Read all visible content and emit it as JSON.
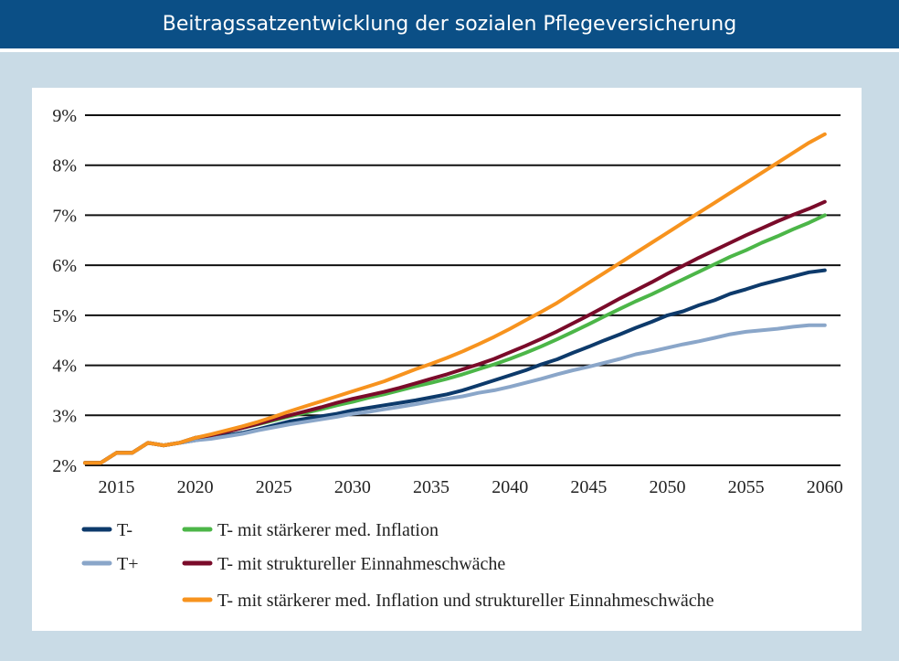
{
  "header": {
    "title": "Beitragssatzentwicklung der sozialen Pflegeversicherung"
  },
  "colors": {
    "header_bg": "#0b4f86",
    "frame_bg": "#c9dbe6",
    "T_minus": "#0d3a6b",
    "T_plus": "#8aa6c9",
    "inflation": "#4cb648",
    "structural": "#7a0b2a",
    "combined": "#f7931e"
  },
  "chart_data": {
    "type": "line",
    "title": "",
    "xlabel": "",
    "ylabel": "",
    "xlim": [
      2013,
      2061
    ],
    "ylim": [
      2,
      9
    ],
    "x_ticks": [
      2015,
      2020,
      2025,
      2030,
      2035,
      2040,
      2045,
      2050,
      2055,
      2060
    ],
    "y_ticks": [
      2,
      3,
      4,
      5,
      6,
      7,
      8,
      9
    ],
    "y_tick_labels": [
      "2%",
      "3%",
      "4%",
      "5%",
      "6%",
      "7%",
      "8%",
      "9%"
    ],
    "grid": "horizontal",
    "legend_position": "bottom",
    "x": [
      2013,
      2014,
      2015,
      2016,
      2017,
      2018,
      2019,
      2020,
      2021,
      2022,
      2023,
      2024,
      2025,
      2026,
      2027,
      2028,
      2029,
      2030,
      2031,
      2032,
      2033,
      2034,
      2035,
      2036,
      2037,
      2038,
      2039,
      2040,
      2041,
      2042,
      2043,
      2044,
      2045,
      2046,
      2047,
      2048,
      2049,
      2050,
      2051,
      2052,
      2053,
      2054,
      2055,
      2056,
      2057,
      2058,
      2059,
      2060
    ],
    "series": [
      {
        "name": "T-",
        "color_key": "T_minus",
        "values": [
          2.05,
          2.05,
          2.25,
          2.25,
          2.45,
          2.4,
          2.45,
          2.5,
          2.55,
          2.6,
          2.65,
          2.72,
          2.8,
          2.88,
          2.93,
          2.98,
          3.03,
          3.1,
          3.15,
          3.2,
          3.25,
          3.3,
          3.36,
          3.42,
          3.5,
          3.6,
          3.7,
          3.8,
          3.9,
          4.02,
          4.12,
          4.25,
          4.37,
          4.5,
          4.62,
          4.75,
          4.87,
          5.0,
          5.08,
          5.2,
          5.3,
          5.43,
          5.52,
          5.62,
          5.7,
          5.78,
          5.86,
          5.9
        ]
      },
      {
        "name": "T+",
        "color_key": "T_plus",
        "values": [
          2.05,
          2.05,
          2.25,
          2.25,
          2.45,
          2.4,
          2.45,
          2.5,
          2.53,
          2.58,
          2.63,
          2.7,
          2.76,
          2.82,
          2.87,
          2.92,
          2.97,
          3.03,
          3.07,
          3.12,
          3.17,
          3.22,
          3.28,
          3.33,
          3.38,
          3.45,
          3.5,
          3.57,
          3.65,
          3.73,
          3.82,
          3.9,
          3.97,
          4.05,
          4.13,
          4.22,
          4.28,
          4.35,
          4.42,
          4.48,
          4.55,
          4.62,
          4.67,
          4.7,
          4.73,
          4.77,
          4.8,
          4.8
        ]
      },
      {
        "name": "T- mit stärkerer med. Inflation",
        "color_key": "inflation",
        "values": [
          2.05,
          2.05,
          2.25,
          2.25,
          2.45,
          2.4,
          2.45,
          2.55,
          2.6,
          2.67,
          2.75,
          2.82,
          2.9,
          2.98,
          3.05,
          3.12,
          3.2,
          3.27,
          3.35,
          3.42,
          3.5,
          3.58,
          3.65,
          3.73,
          3.82,
          3.92,
          4.02,
          4.13,
          4.25,
          4.38,
          4.52,
          4.67,
          4.82,
          4.98,
          5.13,
          5.28,
          5.42,
          5.57,
          5.72,
          5.87,
          6.02,
          6.17,
          6.3,
          6.45,
          6.58,
          6.72,
          6.85,
          7.0
        ]
      },
      {
        "name": "T- mit struktureller Einnahmeschwäche",
        "color_key": "structural",
        "values": [
          2.05,
          2.05,
          2.25,
          2.25,
          2.45,
          2.4,
          2.45,
          2.55,
          2.6,
          2.67,
          2.75,
          2.83,
          2.92,
          3.0,
          3.08,
          3.16,
          3.25,
          3.33,
          3.4,
          3.47,
          3.55,
          3.64,
          3.73,
          3.82,
          3.92,
          4.02,
          4.13,
          4.26,
          4.39,
          4.53,
          4.68,
          4.84,
          5.0,
          5.17,
          5.34,
          5.5,
          5.66,
          5.83,
          5.99,
          6.15,
          6.3,
          6.45,
          6.6,
          6.74,
          6.88,
          7.01,
          7.13,
          7.27
        ]
      },
      {
        "name": "T- mit stärkerer med. Inflation und struktureller Einnahmeschwäche",
        "color_key": "combined",
        "values": [
          2.05,
          2.05,
          2.25,
          2.25,
          2.45,
          2.4,
          2.45,
          2.55,
          2.62,
          2.7,
          2.78,
          2.87,
          2.97,
          3.08,
          3.18,
          3.28,
          3.38,
          3.48,
          3.58,
          3.68,
          3.8,
          3.92,
          4.03,
          4.15,
          4.28,
          4.42,
          4.57,
          4.73,
          4.9,
          5.07,
          5.25,
          5.45,
          5.65,
          5.85,
          6.05,
          6.25,
          6.45,
          6.65,
          6.85,
          7.05,
          7.25,
          7.45,
          7.65,
          7.85,
          8.05,
          8.25,
          8.45,
          8.62
        ]
      }
    ],
    "legend": [
      {
        "label": "T-",
        "color_key": "T_minus"
      },
      {
        "label": "T+",
        "color_key": "T_plus"
      },
      {
        "label": "T- mit stärkerer med. Inflation",
        "color_key": "inflation"
      },
      {
        "label": "T- mit struktureller Einnahmeschwäche",
        "color_key": "structural"
      },
      {
        "label": "T- mit stärkerer med. Inflation und struktureller Einnahmeschwäche",
        "color_key": "combined"
      }
    ]
  }
}
